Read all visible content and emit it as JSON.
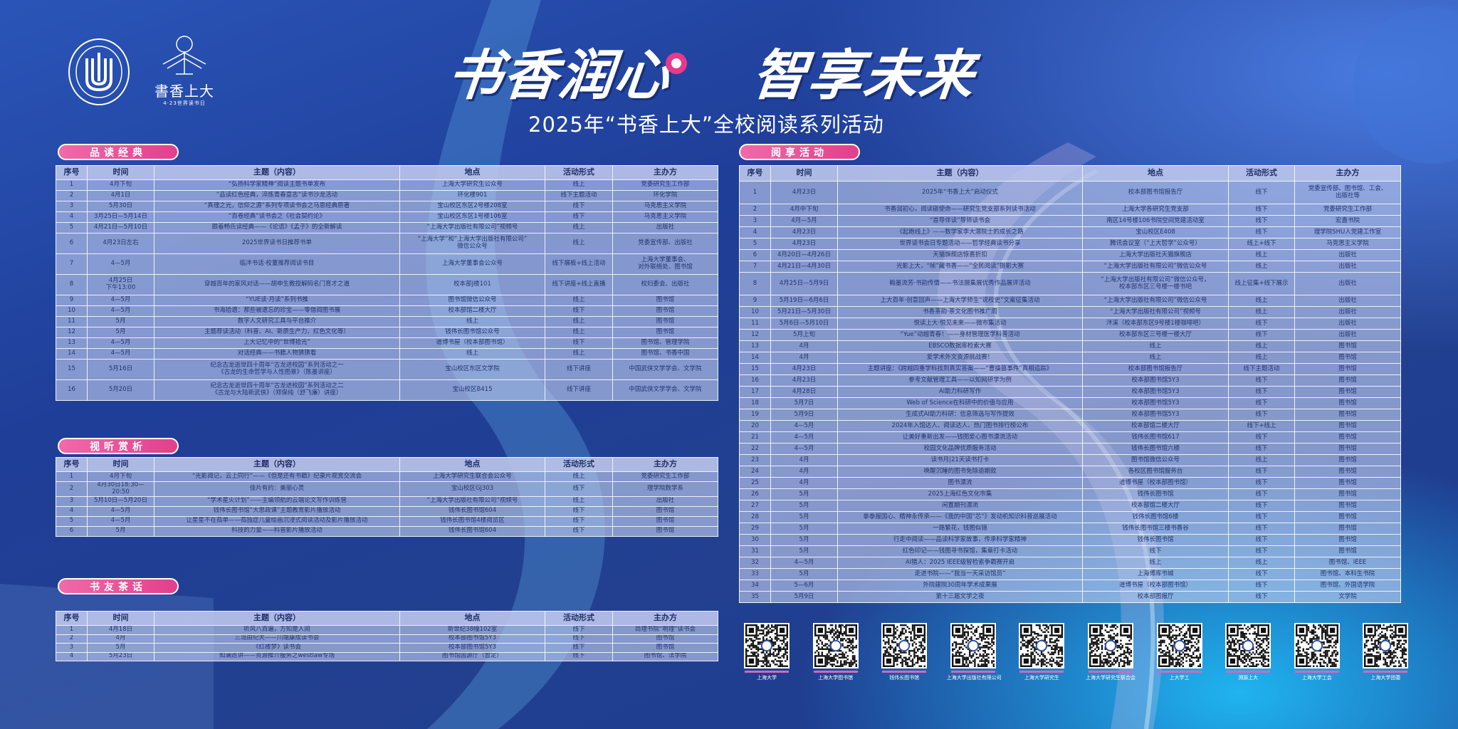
{
  "header": {
    "title_left": "书香润心",
    "title_right": "智享未来",
    "subtitle": "2025年“书香上大”全校阅读系列活动",
    "logo_university": "SHANGHAI UNIVERSITY 上海大学",
    "logo_brand": "書香上大",
    "logo_brand_sub": "4·23世界读书日"
  },
  "colors": {
    "accent_pink": "#e8398d",
    "background": "#1f3e98",
    "table_text": "#23346f"
  },
  "columns": [
    "序号",
    "时间",
    "主题（内容）",
    "地点",
    "活动形式",
    "主办方"
  ],
  "sections": [
    {
      "title": "品读经典",
      "rows": [
        [
          "1",
          "4月下旬",
          "“弘扬科学家精神”阅读主题书单发布",
          "上海大学研究生公众号",
          "线上",
          "党委研究生工作部"
        ],
        [
          "2",
          "4月1日",
          "“品读红色经典，淬炼青春意志”读书沙龙活动",
          "环化楼901",
          "线下主题活动",
          "环化学院"
        ],
        [
          "3",
          "5月30日",
          "“真理之光，信仰之源”系列专项读书会之马恩经典原著",
          "宝山校区东区2号楼208室",
          "线下",
          "马克思主义学院"
        ],
        [
          "4",
          "3月25日—5月14日",
          "“百卷经典”读书会之《社会契约论》",
          "宝山校区东区1号楼106室",
          "线下",
          "马克思主义学院"
        ],
        [
          "5",
          "4月21日—5月10日",
          "跟着畅氏读经典——《论语》《孟子》的全新解读",
          "“上海大学出版社有限公司”视频号",
          "线上",
          "出版社"
        ],
        [
          "6",
          "4月23日左右",
          "2025世界读书日推荐书单",
          "“上海大学”和“上海大学出版社有限公司”\n微信公众号",
          "线上",
          "党委宣传部、出版社"
        ],
        [
          "7",
          "4—5月",
          "临泮书话·校董推荐阅读书目",
          "上海大学董事会公众号",
          "线下展板+线上活动",
          "上海大学董事会、\n对外联络处、图书馆"
        ],
        [
          "8",
          "4月25日\n下午13:00",
          "穿越百年的家风对话——胡申生教授解码名门育才之道",
          "校本部J楼101",
          "线下讲座+线上直播",
          "校妇委会、出版社"
        ],
        [
          "9",
          "4—5月",
          "“YUE读·月读”系列书推",
          "图书馆微信公众号",
          "线上",
          "图书馆"
        ],
        [
          "10",
          "4—5月",
          "书海拾遗：那些被遗忘的珍宝——零借阅图书展",
          "校本部馆二楼大厅",
          "线下",
          "图书馆"
        ],
        [
          "11",
          "5月",
          "数字人文研究工具与平台推介",
          "线上",
          "线上",
          "图书馆"
        ],
        [
          "12",
          "5月",
          "主题荐读活动（科普、AI、新质生产力、红色文化等）",
          "钱伟长图书馆公众号",
          "线上",
          "图书馆"
        ],
        [
          "13",
          "4—5月",
          "上大记忆中的“世博拾光”",
          "道博书屋（校本部图书馆）",
          "线下",
          "图书馆、管理学院"
        ],
        [
          "14",
          "4—5月",
          "对话经典——书籍人物猜猜看",
          "线上",
          "线上",
          "图书馆、书香中国"
        ],
        [
          "15",
          "5月16日",
          "纪念古龙逝世四十周年“古龙进校园”系列活动之一\n《古龙的生命哲学与人性图景》（陈墨讲座）",
          "宝山校区东区文学院",
          "线下讲座",
          "中国武侠文学学会、文学院"
        ],
        [
          "16",
          "5月20日",
          "纪念古龙逝世四十周年“古龙进校园”系列活动之二\n《古龙与大陆新武侠》（郑保纯（舒飞廉）讲座）",
          "宝山校区B415",
          "线下讲座",
          "中国武侠文学学会、文学院"
        ]
      ]
    },
    {
      "title": "视听赏析",
      "rows": [
        [
          "1",
          "4月下旬",
          "“光影阅记，云上同行”——《但是还有书籍》纪录片观赏交流会",
          "上海大学研究生联合会公众号",
          "线上",
          "党委研究生工作部"
        ],
        [
          "2",
          "4月30日18:30—20:50",
          "佳片有约：美丽心灵",
          "宝山校区GJ303",
          "线下",
          "理学院数学系"
        ],
        [
          "3",
          "5月10日—5月20日",
          "“学术星火计划”——主编领航的云端论文写作训练营",
          "“上海大学出版社有限公司”视频号",
          "线上",
          "出版社"
        ],
        [
          "4",
          "4—5月",
          "钱伟长图书馆“大思政课”主题教育影片播放活动",
          "钱伟长图书馆604",
          "线下",
          "图书馆"
        ],
        [
          "5",
          "4—5月",
          "让星星不在孤单——孤独症儿童绘画沉浸式阅读活动及影片播放活动",
          "钱伟长图书馆4楼阅览区",
          "线下",
          "图书馆"
        ],
        [
          "6",
          "5月",
          "科技的力量——科普影片播放活动",
          "钱伟长图书馆604",
          "线下",
          "图书馆"
        ]
      ]
    },
    {
      "title": "书友茶话",
      "rows": [
        [
          "1",
          "4月18日",
          "听风八百遍，方知是人间",
          "新世纪38幢102室",
          "线下",
          "尚理书院“明理”读书会"
        ],
        [
          "2",
          "4月",
          "三岛由纪夫——川端康成读书会",
          "校本部图书馆5Y3",
          "线下",
          "图书馆"
        ],
        [
          "3",
          "5月",
          "《红楼梦》读书会",
          "校本部图书馆5Y3",
          "线下",
          "图书馆"
        ],
        [
          "4",
          "5月23日",
          "知澜巡讲——资源推介服务之westlaw专场",
          "图书馆国源厅（暂定）",
          "线下",
          "图书馆、法学院"
        ]
      ]
    },
    {
      "title": "阅享活动",
      "rows": [
        [
          "1",
          "4月23日",
          "2025年“书香上大”启动仪式",
          "校本部图书馆报告厅",
          "线下",
          "党委宣传部、图书馆、工会、\n出版社等"
        ],
        [
          "2",
          "4月中下旬",
          "书香润初心，阅读砺使命——研究生党支部系列读书活动",
          "上海大学各研究生党支部",
          "线下",
          "党委研究生工作部"
        ],
        [
          "3",
          "4月—5月",
          "“首导伴读”导师读书会",
          "南区14号楼106书院空间党建活动室",
          "线下",
          "宏嘉书院"
        ],
        [
          "4",
          "4月23日",
          "《起跑线上》——数学家李大潜院士的成长之路",
          "宝山校区E408",
          "线下",
          "理学院SHU人党建工作室"
        ],
        [
          "5",
          "4月23日",
          "世界读书会日专题活动——哲学经典读书分享",
          "腾讯会议室（“上大哲学”公众号）",
          "线上+线下",
          "马克思主义学院"
        ],
        [
          "6",
          "4月20日—4月26日",
          "天猫旗舰店惊喜折扣",
          "上海大学出版社天猫旗舰店",
          "线上",
          "出版社"
        ],
        [
          "7",
          "4月21日—4月30日",
          "光影上大，“帧”藏书香——“全民阅读”摄影大赛",
          "“上海大学出版社有限公司”微信公众号",
          "线上",
          "出版社"
        ],
        [
          "8",
          "4月25日—5月9日",
          "翰墨流芳·书韵传情——书法摄集展优秀作品展评活动",
          "“上海大学出版社有限公司”微信公众号，\n校本部东区三号楼一楼书吧",
          "线上征集+线下展示",
          "出版社"
        ],
        [
          "9",
          "5月19日—6月6日",
          "上大百年·创意回声——上海大学师生“说校史”文案征集活动",
          "“上海大学出版社有限公司”微信公众号",
          "线上",
          "出版社"
        ],
        [
          "10",
          "5月21日—5月30日",
          "书香茶韵·茶文化图书推广周",
          "“上海大学出版社有限公司”视频号",
          "线上",
          "出版社"
        ],
        [
          "11",
          "5月6日—5月10日",
          "悦读上大·悦见未来——微市集活动",
          "泮溪（校本部东区9号楼1楼咖啡吧）",
          "线下",
          "出版社"
        ],
        [
          "12",
          "5月上旬",
          "“Yue”动越青春！——身材管理医学科普活动",
          "校本部东区三号楼一楼大厅",
          "线下",
          "出版社"
        ],
        [
          "13",
          "4月",
          "EBSCO数据库检索大赛",
          "线上",
          "线上",
          "图书馆"
        ],
        [
          "14",
          "4月",
          "爱学术外文资源挑战赛！",
          "线上",
          "线上",
          "图书馆"
        ],
        [
          "15",
          "4月23日",
          "主题讲座：《跨越四重学科找到真实答案——“曹操墓事件”真相追踪》",
          "校本部图书馆报告厅",
          "线下主题活动",
          "图书馆"
        ],
        [
          "16",
          "4月23日",
          "参考文献管理工具——以知网研学为例",
          "校本部图书馆5Y3",
          "线下",
          "图书馆"
        ],
        [
          "17",
          "4月28日",
          "AI助力科研写作",
          "校本部图书馆5Y3",
          "线下",
          "图书馆"
        ],
        [
          "18",
          "5月7日",
          "Web of Science在科研中的价值与应用",
          "校本部图书馆5Y3",
          "线下",
          "图书馆"
        ],
        [
          "19",
          "5月9日",
          "生成式AI助力科研：信息筛选与写作提效",
          "校本部图书馆5Y3",
          "线下",
          "图书馆"
        ],
        [
          "20",
          "4—5月",
          "2024年入馆达人、阅读达人、热门图书排行榜公布",
          "校本部馆二楼大厅",
          "线下+线上",
          "图书馆"
        ],
        [
          "21",
          "4—5月",
          "让美好重新出发——钱图爱心图书漂流活动",
          "钱伟长图书馆617",
          "线下",
          "图书馆"
        ],
        [
          "22",
          "4—5月",
          "校园文化品牌优质服务活动",
          "钱伟长图书馆六楼",
          "线下",
          "图书馆"
        ],
        [
          "23",
          "4月",
          "读书月|21天读书打卡",
          "图书馆微信公众号",
          "线上",
          "图书馆"
        ],
        [
          "24",
          "4月",
          "唤醒沉睡的图书免除逾期款",
          "各校区图书馆服务台",
          "线下",
          "图书馆"
        ],
        [
          "25",
          "4月",
          "图书漂流",
          "道博书屋（校本部图书馆）",
          "线下",
          "图书馆"
        ],
        [
          "26",
          "5月",
          "2025上海红色文化市集",
          "钱伟长图书馆",
          "线下",
          "图书馆"
        ],
        [
          "27",
          "5月",
          "闲置期刊漂流",
          "校本部馆二楼大厅",
          "线下",
          "图书馆"
        ],
        [
          "28",
          "5月",
          "拳拳报国心、精神永传承——《我的中国“芯”》发动机知识科普巡展活动",
          "钱伟长图书馆6楼",
          "线下",
          "图书馆"
        ],
        [
          "29",
          "5月",
          "一路繁花，钱图似锦",
          "钱伟长图书馆三楼书香谷",
          "线下",
          "图书馆"
        ],
        [
          "30",
          "5月",
          "行走中阅读——品读科学家故事，传承科学家精神",
          "钱伟长图书馆",
          "线下",
          "图书馆"
        ],
        [
          "31",
          "5月",
          "红色印记——钱图寻书探馆，集章打卡活动",
          "线下",
          "线下",
          "图书馆"
        ],
        [
          "32",
          "4—5月",
          "AI猎人：2025 IEEE级智检索争霸赛开启",
          "线上",
          "线上",
          "图书馆、IEEE"
        ],
        [
          "33",
          "5月",
          "走进书院——“我当一天采访馆员”",
          "上海博库书城",
          "线下",
          "图书馆、本科生书院"
        ],
        [
          "34",
          "5—6月",
          "外院建院30周年学术成果展",
          "道博书屋（校本部图书馆）",
          "线下",
          "图书馆、外国语学院"
        ],
        [
          "35",
          "5月9日",
          "第十三届文学之夜",
          "校本部图报厅",
          "线下",
          "文学院"
        ]
      ]
    }
  ],
  "qr_codes": [
    {
      "label": "上海大学",
      "icon": "qr-code-icon"
    },
    {
      "label": "上海大学图书馆",
      "icon": "qr-code-icon"
    },
    {
      "label": "钱伟长图书馆",
      "icon": "qr-code-icon"
    },
    {
      "label": "上海大学出版社有限公司",
      "icon": "qr-code-icon"
    },
    {
      "label": "上海大学研究生",
      "icon": "qr-code-icon"
    },
    {
      "label": "上海大学研究生联合会",
      "icon": "qr-code-icon"
    },
    {
      "label": "上大学工",
      "icon": "qr-code-icon"
    },
    {
      "label": "溯源上大",
      "icon": "qr-code-icon"
    },
    {
      "label": "上海大学工会",
      "icon": "qr-code-icon"
    },
    {
      "label": "上海大学团委",
      "icon": "qr-code-icon"
    }
  ]
}
